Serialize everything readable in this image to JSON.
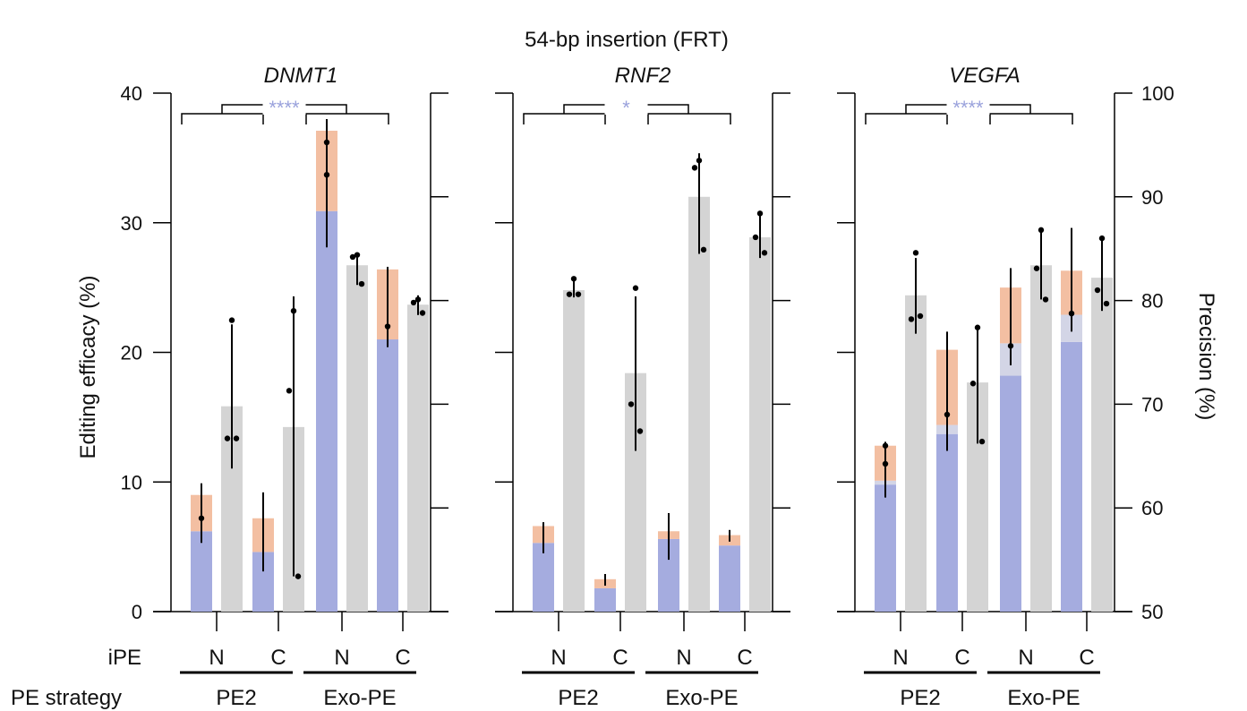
{
  "colors": {
    "perfect": "#a5acdf",
    "imperfect": "#f3bfa2",
    "other": "#d3d5e6",
    "precision": "#d4d4d4",
    "sig": "#9aa2dc",
    "axis": "#000000"
  },
  "chart_data": {
    "type": "bar",
    "title": "54-bp insertion (FRT)",
    "ylabel": "Editing efficacy (%)",
    "ylabel_right": "Precision (%)",
    "ylim": [
      0,
      40
    ],
    "yticks": [
      "0",
      "10",
      "20",
      "30",
      "40"
    ],
    "ylim_right": [
      50,
      100
    ],
    "yticks_right": [
      "50",
      "60",
      "70",
      "80",
      "90",
      "100"
    ],
    "row_labels": {
      "ipe": "iPE",
      "strategy": "PE strategy"
    },
    "conditions": [
      {
        "ipe": "N",
        "strategy": "PE2"
      },
      {
        "ipe": "C",
        "strategy": "PE2"
      },
      {
        "ipe": "N",
        "strategy": "Exo-PE"
      },
      {
        "ipe": "C",
        "strategy": "Exo-PE"
      }
    ],
    "strategies": [
      "PE2",
      "Exo-PE"
    ],
    "legend": null,
    "panels": [
      {
        "gene": "DNMT1",
        "significance": "****",
        "efficacy": [
          {
            "perfect": 6.2,
            "other": 0.0,
            "imperfect": 2.8,
            "error": [
              5.3,
              9.9
            ],
            "points": [
              7.2
            ]
          },
          {
            "perfect": 4.6,
            "other": 0.0,
            "imperfect": 2.6,
            "error": [
              3.1,
              9.2
            ],
            "points": []
          },
          {
            "perfect": 30.9,
            "other": 0.0,
            "imperfect": 6.2,
            "error": [
              28.1,
              38.0
            ],
            "points": [
              33.7,
              36.2
            ]
          },
          {
            "perfect": 21.0,
            "other": 0.0,
            "imperfect": 5.4,
            "error": [
              20.4,
              26.6
            ],
            "points": [
              22.0
            ]
          }
        ],
        "precision": [
          {
            "value": 69.8,
            "error": [
              63.8,
              77.7
            ],
            "points": [
              78.1,
              66.7,
              66.7
            ]
          },
          {
            "value": 67.8,
            "error": [
              53.4,
              80.4
            ],
            "points": [
              79.0,
              71.3,
              53.4
            ]
          },
          {
            "value": 83.4,
            "error": [
              81.5,
              84.5
            ],
            "points": [
              84.4,
              84.2,
              81.6
            ]
          },
          {
            "value": 79.6,
            "error": [
              78.6,
              80.5
            ],
            "points": [
              80.1,
              79.8,
              78.8
            ]
          }
        ]
      },
      {
        "gene": "RNF2",
        "significance": "*",
        "efficacy": [
          {
            "perfect": 5.3,
            "other": 0.0,
            "imperfect": 1.3,
            "error": [
              4.5,
              6.9
            ],
            "points": []
          },
          {
            "perfect": 1.8,
            "other": 0.0,
            "imperfect": 0.7,
            "error": [
              2.0,
              2.9
            ],
            "points": []
          },
          {
            "perfect": 5.6,
            "other": 0.0,
            "imperfect": 0.6,
            "error": [
              4.0,
              7.6
            ],
            "points": []
          },
          {
            "perfect": 5.1,
            "other": 0.0,
            "imperfect": 0.8,
            "error": [
              5.4,
              6.3
            ],
            "points": []
          }
        ],
        "precision": [
          {
            "value": 81.0,
            "error": [
              80.3,
              82.3
            ],
            "points": [
              82.1,
              80.6,
              80.6
            ]
          },
          {
            "value": 73.0,
            "error": [
              65.5,
              80.4
            ],
            "points": [
              81.2,
              70.0,
              67.4
            ]
          },
          {
            "value": 90.0,
            "error": [
              84.5,
              94.2
            ],
            "points": [
              93.5,
              92.8,
              84.9
            ]
          },
          {
            "value": 86.1,
            "error": [
              84.1,
              88.6
            ],
            "points": [
              88.4,
              86.1,
              84.6
            ]
          }
        ]
      },
      {
        "gene": "VEGFA",
        "significance": "****",
        "efficacy": [
          {
            "perfect": 9.8,
            "other": 0.3,
            "imperfect": 2.7,
            "error": [
              8.8,
              13.1
            ],
            "points": [
              12.8,
              11.4
            ]
          },
          {
            "perfect": 13.7,
            "other": 0.7,
            "imperfect": 5.8,
            "error": [
              12.4,
              21.6
            ],
            "points": [
              15.2
            ]
          },
          {
            "perfect": 18.2,
            "other": 2.5,
            "imperfect": 4.3,
            "error": [
              19.0,
              26.5
            ],
            "points": [
              20.5
            ]
          },
          {
            "perfect": 20.8,
            "other": 2.1,
            "imperfect": 3.4,
            "error": [
              21.6,
              29.6
            ],
            "points": [
              23.0
            ]
          }
        ],
        "precision": [
          {
            "value": 80.5,
            "error": [
              76.8,
              84.1
            ],
            "points": [
              84.6,
              78.2,
              78.5
            ]
          },
          {
            "value": 72.1,
            "error": [
              66.2,
              77.5
            ],
            "points": [
              77.4,
              72.0,
              66.4
            ]
          },
          {
            "value": 83.4,
            "error": [
              80.1,
              86.8
            ],
            "points": [
              86.8,
              83.1,
              80.1
            ]
          },
          {
            "value": 82.2,
            "error": [
              79.0,
              86.0
            ],
            "points": [
              86.0,
              81.0,
              79.7
            ]
          }
        ]
      }
    ]
  }
}
